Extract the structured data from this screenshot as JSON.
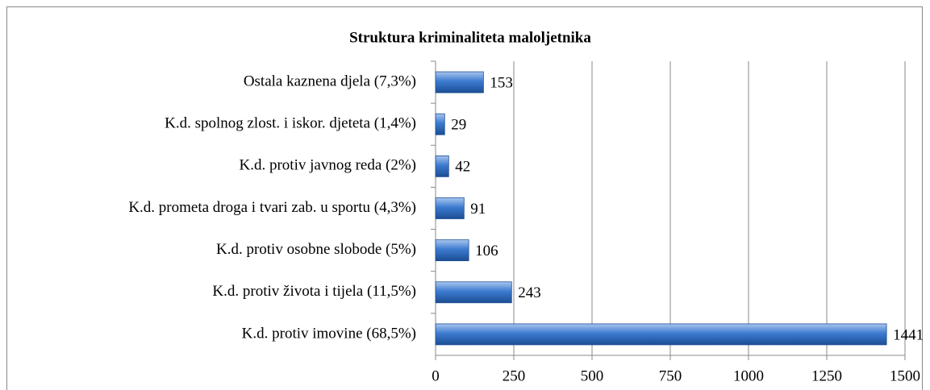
{
  "chart_data": {
    "type": "bar",
    "orientation": "horizontal",
    "title": "Struktura kriminaliteta maloljetnika",
    "categories": [
      "Ostala kaznena djela (7,3%)",
      "K.d. spolnog zlost. i iskor. djeteta (1,4%)",
      "K.d. protiv javnog reda (2%)",
      "K.d. prometa droga i tvari zab. u sportu (4,3%)",
      "K.d. protiv osobne slobode (5%)",
      "K.d. protiv života i tijela (11,5%)",
      "K.d. protiv imovine (68,5%)"
    ],
    "values": [
      153,
      29,
      42,
      91,
      106,
      243,
      1441
    ],
    "color": "#2f6dbf",
    "xlim": [
      0,
      1500
    ],
    "xticks": [
      0,
      250,
      500,
      750,
      1000,
      1250,
      1500
    ],
    "grid": true
  }
}
